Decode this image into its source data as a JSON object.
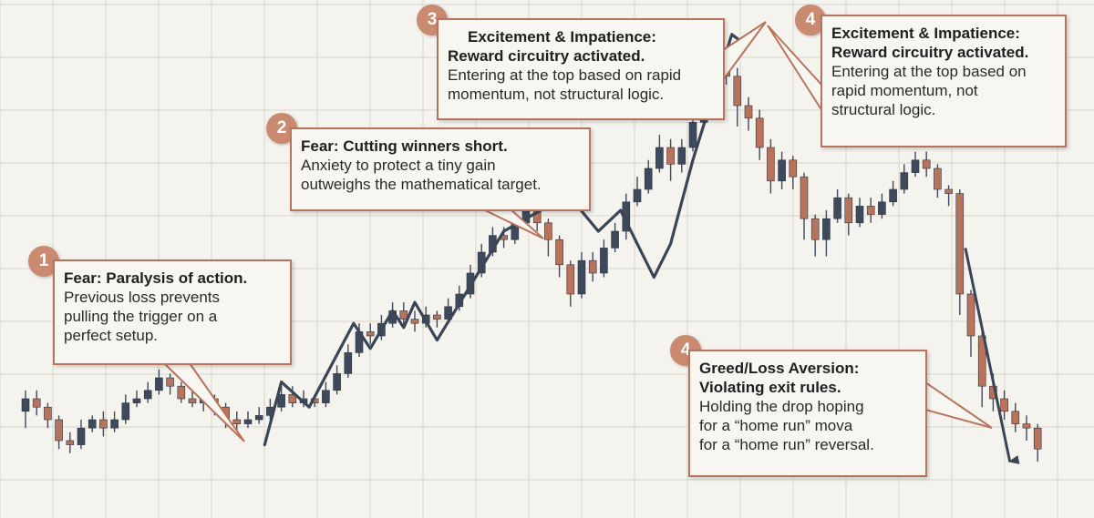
{
  "colors": {
    "background": "#f5f3ee",
    "grid": "#d9d6cf",
    "bull_candle": "#3e4a5c",
    "bear_candle": "#b8735c",
    "trend_line": "#3a4556",
    "callout_border": "#b8735c",
    "badge": "#c98a6f"
  },
  "callouts": [
    {
      "badge": "1",
      "title": "Fear: Paralysis of action.",
      "lines": [
        "Previous loss prevents",
        "pulling the trigger on a",
        "perfect setup."
      ]
    },
    {
      "badge": "2",
      "title": "Fear: Cutting winners short.",
      "lines": [
        "Anxiety to protect a tiny gain",
        "outweighs the mathematical target."
      ]
    },
    {
      "badge": "3",
      "title_lines": [
        "Excitement & Impatience:",
        "Reward circuitry activated."
      ],
      "lines": [
        "Entering at the top based on rapid",
        "momentum, not structural logic."
      ]
    },
    {
      "badge": "4",
      "title_lines": [
        "Excitement & Impatience:",
        "Reward circuitry activated."
      ],
      "lines": [
        "Entering at the top based on",
        "rapid momentum, not",
        "structural logic."
      ]
    },
    {
      "badge": "4",
      "title_lines": [
        "Greed/Loss Aversion:",
        "Violating exit rules."
      ],
      "lines": [
        "Holding the drop hoping",
        "for a “home run” mova",
        "for a “home run” reversal."
      ]
    }
  ],
  "chart_data": {
    "type": "candlestick",
    "grid": true,
    "ylim": [
      0,
      100
    ],
    "candles": [
      {
        "o": 17,
        "c": 20,
        "h": 22,
        "l": 13
      },
      {
        "o": 20,
        "c": 18,
        "h": 22,
        "l": 16
      },
      {
        "o": 18,
        "c": 15,
        "h": 19,
        "l": 13
      },
      {
        "o": 15,
        "c": 10,
        "h": 16,
        "l": 8
      },
      {
        "o": 10,
        "c": 9,
        "h": 12,
        "l": 7
      },
      {
        "o": 9,
        "c": 13,
        "h": 15,
        "l": 8
      },
      {
        "o": 13,
        "c": 15,
        "h": 16,
        "l": 12
      },
      {
        "o": 15,
        "c": 13,
        "h": 17,
        "l": 11
      },
      {
        "o": 13,
        "c": 15,
        "h": 17,
        "l": 12
      },
      {
        "o": 15,
        "c": 19,
        "h": 21,
        "l": 14
      },
      {
        "o": 19,
        "c": 20,
        "h": 22,
        "l": 18
      },
      {
        "o": 20,
        "c": 22,
        "h": 24,
        "l": 19
      },
      {
        "o": 22,
        "c": 25,
        "h": 27,
        "l": 21
      },
      {
        "o": 25,
        "c": 23,
        "h": 26,
        "l": 21
      },
      {
        "o": 23,
        "c": 20,
        "h": 24,
        "l": 19
      },
      {
        "o": 20,
        "c": 19,
        "h": 22,
        "l": 18
      },
      {
        "o": 19,
        "c": 20,
        "h": 22,
        "l": 17
      },
      {
        "o": 20,
        "c": 18,
        "h": 21,
        "l": 16
      },
      {
        "o": 18,
        "c": 15,
        "h": 19,
        "l": 13
      },
      {
        "o": 15,
        "c": 14,
        "h": 17,
        "l": 12
      },
      {
        "o": 14,
        "c": 15,
        "h": 17,
        "l": 13
      },
      {
        "o": 15,
        "c": 16,
        "h": 18,
        "l": 14
      },
      {
        "o": 16,
        "c": 18,
        "h": 20,
        "l": 15
      },
      {
        "o": 18,
        "c": 21,
        "h": 23,
        "l": 17
      },
      {
        "o": 21,
        "c": 19,
        "h": 23,
        "l": 18
      },
      {
        "o": 19,
        "c": 20,
        "h": 22,
        "l": 18
      },
      {
        "o": 20,
        "c": 19,
        "h": 21,
        "l": 18
      },
      {
        "o": 19,
        "c": 22,
        "h": 24,
        "l": 18
      },
      {
        "o": 22,
        "c": 26,
        "h": 28,
        "l": 21
      },
      {
        "o": 26,
        "c": 31,
        "h": 33,
        "l": 25
      },
      {
        "o": 31,
        "c": 36,
        "h": 38,
        "l": 30
      },
      {
        "o": 36,
        "c": 35,
        "h": 38,
        "l": 33
      },
      {
        "o": 35,
        "c": 38,
        "h": 40,
        "l": 34
      },
      {
        "o": 38,
        "c": 41,
        "h": 43,
        "l": 37
      },
      {
        "o": 41,
        "c": 39,
        "h": 43,
        "l": 37
      },
      {
        "o": 39,
        "c": 38,
        "h": 41,
        "l": 36
      },
      {
        "o": 38,
        "c": 40,
        "h": 42,
        "l": 37
      },
      {
        "o": 40,
        "c": 39,
        "h": 41,
        "l": 37
      },
      {
        "o": 39,
        "c": 42,
        "h": 44,
        "l": 38
      },
      {
        "o": 42,
        "c": 45,
        "h": 47,
        "l": 41
      },
      {
        "o": 45,
        "c": 50,
        "h": 52,
        "l": 44
      },
      {
        "o": 50,
        "c": 55,
        "h": 57,
        "l": 49
      },
      {
        "o": 55,
        "c": 59,
        "h": 61,
        "l": 54
      },
      {
        "o": 59,
        "c": 58,
        "h": 61,
        "l": 56
      },
      {
        "o": 58,
        "c": 62,
        "h": 64,
        "l": 57
      },
      {
        "o": 62,
        "c": 66,
        "h": 68,
        "l": 61
      },
      {
        "o": 66,
        "c": 62,
        "h": 68,
        "l": 60
      },
      {
        "o": 62,
        "c": 58,
        "h": 63,
        "l": 54
      },
      {
        "o": 58,
        "c": 52,
        "h": 59,
        "l": 49
      },
      {
        "o": 52,
        "c": 45,
        "h": 53,
        "l": 42
      },
      {
        "o": 45,
        "c": 53,
        "h": 55,
        "l": 44
      },
      {
        "o": 53,
        "c": 50,
        "h": 55,
        "l": 48
      },
      {
        "o": 50,
        "c": 56,
        "h": 58,
        "l": 49
      },
      {
        "o": 56,
        "c": 60,
        "h": 62,
        "l": 55
      },
      {
        "o": 60,
        "c": 67,
        "h": 69,
        "l": 58
      },
      {
        "o": 67,
        "c": 70,
        "h": 73,
        "l": 66
      },
      {
        "o": 70,
        "c": 75,
        "h": 77,
        "l": 69
      },
      {
        "o": 75,
        "c": 80,
        "h": 83,
        "l": 74
      },
      {
        "o": 80,
        "c": 76,
        "h": 82,
        "l": 72
      },
      {
        "o": 76,
        "c": 80,
        "h": 82,
        "l": 74
      },
      {
        "o": 80,
        "c": 86,
        "h": 88,
        "l": 79
      },
      {
        "o": 86,
        "c": 95,
        "h": 97,
        "l": 85
      },
      {
        "o": 95,
        "c": 99,
        "h": 102,
        "l": 93
      },
      {
        "o": 99,
        "c": 97,
        "h": 104,
        "l": 95
      },
      {
        "o": 97,
        "c": 90,
        "h": 99,
        "l": 85
      },
      {
        "o": 90,
        "c": 87,
        "h": 92,
        "l": 84
      },
      {
        "o": 87,
        "c": 80,
        "h": 89,
        "l": 77
      },
      {
        "o": 80,
        "c": 72,
        "h": 82,
        "l": 69
      },
      {
        "o": 72,
        "c": 77,
        "h": 79,
        "l": 70
      },
      {
        "o": 77,
        "c": 73,
        "h": 78,
        "l": 70
      },
      {
        "o": 73,
        "c": 63,
        "h": 74,
        "l": 58
      },
      {
        "o": 63,
        "c": 58,
        "h": 64,
        "l": 54
      },
      {
        "o": 58,
        "c": 63,
        "h": 65,
        "l": 54
      },
      {
        "o": 63,
        "c": 68,
        "h": 70,
        "l": 62
      },
      {
        "o": 68,
        "c": 62,
        "h": 69,
        "l": 59
      },
      {
        "o": 62,
        "c": 66,
        "h": 68,
        "l": 61
      },
      {
        "o": 66,
        "c": 64,
        "h": 68,
        "l": 62
      },
      {
        "o": 64,
        "c": 67,
        "h": 69,
        "l": 63
      },
      {
        "o": 67,
        "c": 70,
        "h": 72,
        "l": 66
      },
      {
        "o": 70,
        "c": 74,
        "h": 76,
        "l": 69
      },
      {
        "o": 74,
        "c": 77,
        "h": 79,
        "l": 73
      },
      {
        "o": 77,
        "c": 75,
        "h": 79,
        "l": 73
      },
      {
        "o": 75,
        "c": 70,
        "h": 76,
        "l": 68
      },
      {
        "o": 70,
        "c": 69,
        "h": 71,
        "l": 66
      },
      {
        "o": 69,
        "c": 45,
        "h": 70,
        "l": 40
      },
      {
        "o": 45,
        "c": 35,
        "h": 46,
        "l": 30
      },
      {
        "o": 35,
        "c": 23,
        "h": 36,
        "l": 18
      },
      {
        "o": 23,
        "c": 20,
        "h": 26,
        "l": 17
      },
      {
        "o": 20,
        "c": 17,
        "h": 22,
        "l": 15
      },
      {
        "o": 17,
        "c": 14,
        "h": 19,
        "l": 12
      },
      {
        "o": 14,
        "c": 13,
        "h": 16,
        "l": 10
      },
      {
        "o": 13,
        "c": 8,
        "h": 14,
        "l": 5
      }
    ],
    "trend_line": [
      {
        "i": 21.5,
        "v": 9
      },
      {
        "i": 23,
        "v": 24
      },
      {
        "i": 25.5,
        "v": 18
      },
      {
        "i": 29.5,
        "v": 38
      },
      {
        "i": 31,
        "v": 32
      },
      {
        "i": 33,
        "v": 41
      },
      {
        "i": 34,
        "v": 37
      },
      {
        "i": 35,
        "v": 43
      },
      {
        "i": 37,
        "v": 34
      },
      {
        "i": 43,
        "v": 60
      },
      {
        "i": 47,
        "v": 66
      },
      {
        "i": 49,
        "v": 68
      },
      {
        "i": 51.5,
        "v": 60
      },
      {
        "i": 53.5,
        "v": 65
      },
      {
        "i": 56.5,
        "v": 49
      },
      {
        "i": 58,
        "v": 57
      },
      {
        "i": 60,
        "v": 77
      },
      {
        "i": 63.5,
        "v": 107
      },
      {
        "i": 64.5,
        "v": 105
      }
    ],
    "drop_arrow": {
      "from": {
        "i": 84.5,
        "v": 56
      },
      "to": {
        "i": 88.5,
        "v": 5
      }
    }
  }
}
